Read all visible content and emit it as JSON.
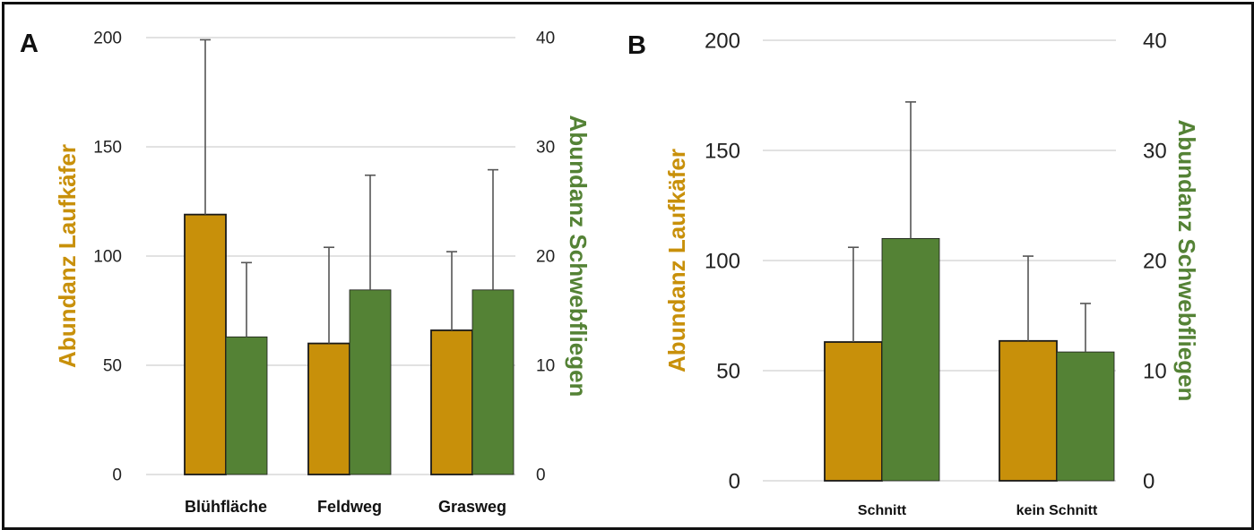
{
  "colors": {
    "laufkaefer": "#C8900A",
    "schwebfliegen": "#548235",
    "grid": "#D9D9D9",
    "error": "#555555"
  },
  "chart_data": [
    {
      "type": "bar",
      "panel": "A",
      "categories": [
        "Blühfläche",
        "Feldweg",
        "Grasweg"
      ],
      "ylabel_left": "Abundanz Laufkäfer",
      "ylabel_right": "Abundanz Schwebfliegen",
      "ylim_left": [
        0,
        200
      ],
      "ylim_right": [
        0,
        40
      ],
      "yticks_left": [
        "0",
        "50",
        "100",
        "150",
        "200"
      ],
      "yticks_right": [
        "0",
        "10",
        "20",
        "30",
        "40"
      ],
      "grid": true,
      "series": [
        {
          "axis": "left",
          "values": [
            119,
            60,
            66
          ],
          "error": [
            80,
            44,
            36
          ]
        },
        {
          "axis": "right",
          "values": [
            12.6,
            16.9,
            16.9
          ],
          "error": [
            6.8,
            10.5,
            11.0
          ]
        }
      ]
    },
    {
      "type": "bar",
      "panel": "B",
      "categories": [
        "Schnitt",
        "kein Schnitt"
      ],
      "ylabel_left": "Abundanz Laufkäfer",
      "ylabel_right": "Abundanz Schwebfliegen",
      "ylim_left": [
        0,
        200
      ],
      "ylim_right": [
        0,
        40
      ],
      "yticks_left": [
        "0",
        "50",
        "100",
        "150",
        "200"
      ],
      "yticks_right": [
        "0",
        "10",
        "20",
        "30",
        "40"
      ],
      "grid": true,
      "series": [
        {
          "axis": "left",
          "values": [
            63,
            63.5
          ],
          "error": [
            43,
            38.5
          ]
        },
        {
          "axis": "right",
          "values": [
            22,
            11.7
          ],
          "error": [
            12.4,
            4.4
          ]
        }
      ]
    }
  ]
}
